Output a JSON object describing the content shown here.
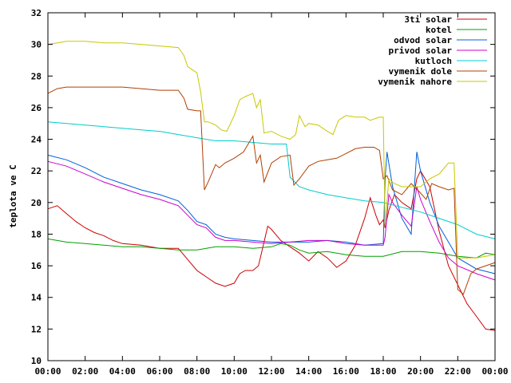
{
  "chart_data": {
    "type": "line",
    "title": "",
    "xlabel": "",
    "ylabel": "teplota ve C",
    "x_tick_labels": [
      "00:00",
      "02:00",
      "04:00",
      "06:00",
      "08:00",
      "10:00",
      "12:00",
      "14:00",
      "16:00",
      "18:00",
      "20:00",
      "22:00",
      "00:00"
    ],
    "y_ticks": [
      10,
      12,
      14,
      16,
      18,
      20,
      22,
      24,
      26,
      28,
      30,
      32
    ],
    "xlim": [
      0,
      24
    ],
    "ylim": [
      10,
      32
    ],
    "grid": false,
    "legend_position": "top-right",
    "series": [
      {
        "name": "3ti solar",
        "color": "#cc0000",
        "points": [
          [
            0,
            19.6
          ],
          [
            0.5,
            19.8
          ],
          [
            1,
            19.3
          ],
          [
            1.5,
            18.8
          ],
          [
            2,
            18.4
          ],
          [
            2.5,
            18.1
          ],
          [
            3,
            17.9
          ],
          [
            3.5,
            17.6
          ],
          [
            4,
            17.4
          ],
          [
            5,
            17.3
          ],
          [
            6,
            17.1
          ],
          [
            7,
            17.1
          ],
          [
            7.5,
            16.4
          ],
          [
            8,
            15.7
          ],
          [
            8.5,
            15.3
          ],
          [
            9,
            14.9
          ],
          [
            9.5,
            14.7
          ],
          [
            10,
            14.9
          ],
          [
            10.3,
            15.5
          ],
          [
            10.6,
            15.7
          ],
          [
            11,
            15.7
          ],
          [
            11.3,
            16.0
          ],
          [
            11.6,
            17.5
          ],
          [
            11.8,
            18.5
          ],
          [
            12,
            18.3
          ],
          [
            12.5,
            17.6
          ],
          [
            13,
            17.2
          ],
          [
            13.5,
            16.8
          ],
          [
            14,
            16.3
          ],
          [
            14.5,
            16.9
          ],
          [
            15,
            16.5
          ],
          [
            15.5,
            15.9
          ],
          [
            16,
            16.3
          ],
          [
            16.5,
            17.3
          ],
          [
            17,
            19.0
          ],
          [
            17.3,
            20.3
          ],
          [
            17.6,
            19.2
          ],
          [
            17.8,
            18.6
          ],
          [
            18,
            18.9
          ],
          [
            18.1,
            18.4
          ],
          [
            18.3,
            19.5
          ],
          [
            18.6,
            20.5
          ],
          [
            19,
            20.0
          ],
          [
            19.5,
            19.6
          ],
          [
            19.8,
            21.5
          ],
          [
            20,
            22.0
          ],
          [
            20.5,
            21.0
          ],
          [
            21,
            18.2
          ],
          [
            21.5,
            16.0
          ],
          [
            22,
            14.8
          ],
          [
            22.5,
            13.6
          ],
          [
            23,
            12.8
          ],
          [
            23.5,
            12.0
          ],
          [
            24,
            11.9
          ]
        ]
      },
      {
        "name": "kotel",
        "color": "#00a000",
        "points": [
          [
            0,
            17.7
          ],
          [
            1,
            17.5
          ],
          [
            2,
            17.4
          ],
          [
            3,
            17.3
          ],
          [
            4,
            17.2
          ],
          [
            5,
            17.2
          ],
          [
            6,
            17.1
          ],
          [
            7,
            17.0
          ],
          [
            8,
            17.0
          ],
          [
            9,
            17.2
          ],
          [
            10,
            17.2
          ],
          [
            11,
            17.1
          ],
          [
            12,
            17.2
          ],
          [
            12.5,
            17.4
          ],
          [
            13,
            17.3
          ],
          [
            13.5,
            17.0
          ],
          [
            14,
            16.8
          ],
          [
            15,
            16.9
          ],
          [
            16,
            16.7
          ],
          [
            17,
            16.6
          ],
          [
            18,
            16.6
          ],
          [
            19,
            16.9
          ],
          [
            20,
            16.9
          ],
          [
            21,
            16.8
          ],
          [
            22,
            16.6
          ],
          [
            23,
            16.5
          ],
          [
            23.5,
            16.8
          ],
          [
            24,
            16.7
          ]
        ]
      },
      {
        "name": "odvod solar",
        "color": "#0060dd",
        "points": [
          [
            0,
            23.0
          ],
          [
            1,
            22.7
          ],
          [
            2,
            22.2
          ],
          [
            3,
            21.6
          ],
          [
            4,
            21.2
          ],
          [
            5,
            20.8
          ],
          [
            6,
            20.5
          ],
          [
            7,
            20.1
          ],
          [
            7.5,
            19.5
          ],
          [
            8,
            18.8
          ],
          [
            8.5,
            18.6
          ],
          [
            9,
            18.0
          ],
          [
            9.5,
            17.8
          ],
          [
            10,
            17.7
          ],
          [
            11,
            17.6
          ],
          [
            12,
            17.5
          ],
          [
            13,
            17.5
          ],
          [
            14,
            17.5
          ],
          [
            15,
            17.6
          ],
          [
            16,
            17.5
          ],
          [
            17,
            17.3
          ],
          [
            18,
            17.4
          ],
          [
            18.1,
            21.5
          ],
          [
            18.2,
            23.2
          ],
          [
            18.5,
            21.0
          ],
          [
            19,
            19.0
          ],
          [
            19.5,
            18.0
          ],
          [
            19.8,
            23.2
          ],
          [
            20,
            22.0
          ],
          [
            20.5,
            20.0
          ],
          [
            21,
            18.5
          ],
          [
            21.5,
            17.5
          ],
          [
            22,
            16.5
          ],
          [
            23,
            15.8
          ],
          [
            24,
            15.5
          ]
        ]
      },
      {
        "name": "privod solar",
        "color": "#cc00cc",
        "points": [
          [
            0,
            22.6
          ],
          [
            1,
            22.3
          ],
          [
            2,
            21.8
          ],
          [
            3,
            21.3
          ],
          [
            4,
            20.9
          ],
          [
            5,
            20.5
          ],
          [
            6,
            20.2
          ],
          [
            7,
            19.8
          ],
          [
            7.5,
            19.2
          ],
          [
            8,
            18.6
          ],
          [
            8.5,
            18.4
          ],
          [
            9,
            17.8
          ],
          [
            9.5,
            17.6
          ],
          [
            10,
            17.6
          ],
          [
            11,
            17.5
          ],
          [
            12,
            17.4
          ],
          [
            13,
            17.5
          ],
          [
            14,
            17.6
          ],
          [
            15,
            17.6
          ],
          [
            16,
            17.4
          ],
          [
            17,
            17.3
          ],
          [
            18,
            17.3
          ],
          [
            18.1,
            17.8
          ],
          [
            18.3,
            20.5
          ],
          [
            18.5,
            20.0
          ],
          [
            19,
            19.2
          ],
          [
            19.5,
            18.5
          ],
          [
            19.8,
            21.0
          ],
          [
            20,
            20.2
          ],
          [
            20.5,
            18.8
          ],
          [
            21,
            17.5
          ],
          [
            21.5,
            16.5
          ],
          [
            22,
            16.0
          ],
          [
            23,
            15.5
          ],
          [
            24,
            15.1
          ]
        ]
      },
      {
        "name": "kutloch",
        "color": "#00cccc",
        "points": [
          [
            0,
            25.1
          ],
          [
            1,
            25.0
          ],
          [
            2,
            24.9
          ],
          [
            3,
            24.8
          ],
          [
            4,
            24.7
          ],
          [
            5,
            24.6
          ],
          [
            6,
            24.5
          ],
          [
            7,
            24.3
          ],
          [
            8,
            24.1
          ],
          [
            9,
            23.9
          ],
          [
            10,
            23.9
          ],
          [
            11,
            23.8
          ],
          [
            12,
            23.7
          ],
          [
            12.8,
            23.7
          ],
          [
            13,
            21.6
          ],
          [
            13.5,
            21.0
          ],
          [
            14,
            20.8
          ],
          [
            15,
            20.5
          ],
          [
            16,
            20.3
          ],
          [
            17,
            20.1
          ],
          [
            18,
            20.0
          ],
          [
            19,
            19.7
          ],
          [
            20,
            19.4
          ],
          [
            21,
            19.0
          ],
          [
            22,
            18.6
          ],
          [
            23,
            18.0
          ],
          [
            24,
            17.7
          ]
        ]
      },
      {
        "name": "vymenik dole",
        "color": "#b04000",
        "points": [
          [
            0,
            26.9
          ],
          [
            0.5,
            27.2
          ],
          [
            1,
            27.3
          ],
          [
            2,
            27.3
          ],
          [
            3,
            27.3
          ],
          [
            4,
            27.3
          ],
          [
            5,
            27.2
          ],
          [
            6,
            27.1
          ],
          [
            7,
            27.1
          ],
          [
            7.3,
            26.6
          ],
          [
            7.5,
            25.9
          ],
          [
            8,
            25.8
          ],
          [
            8.2,
            25.8
          ],
          [
            8.4,
            20.8
          ],
          [
            8.6,
            21.3
          ],
          [
            9,
            22.4
          ],
          [
            9.2,
            22.2
          ],
          [
            9.5,
            22.5
          ],
          [
            10,
            22.8
          ],
          [
            10.5,
            23.2
          ],
          [
            11,
            24.2
          ],
          [
            11.2,
            22.5
          ],
          [
            11.4,
            23.0
          ],
          [
            11.6,
            21.3
          ],
          [
            12,
            22.5
          ],
          [
            12.5,
            22.9
          ],
          [
            13,
            23.0
          ],
          [
            13.2,
            21.1
          ],
          [
            13.5,
            21.5
          ],
          [
            14,
            22.3
          ],
          [
            14.5,
            22.6
          ],
          [
            15,
            22.7
          ],
          [
            15.5,
            22.8
          ],
          [
            16,
            23.1
          ],
          [
            16.5,
            23.4
          ],
          [
            17,
            23.5
          ],
          [
            17.5,
            23.5
          ],
          [
            17.8,
            23.3
          ],
          [
            18,
            21.5
          ],
          [
            18.2,
            21.7
          ],
          [
            18.5,
            20.8
          ],
          [
            19,
            20.5
          ],
          [
            19.5,
            21.2
          ],
          [
            20,
            20.6
          ],
          [
            20.3,
            20.2
          ],
          [
            20.6,
            21.2
          ],
          [
            21,
            21.0
          ],
          [
            21.5,
            20.8
          ],
          [
            21.8,
            20.9
          ],
          [
            22,
            14.5
          ],
          [
            22.3,
            14.2
          ],
          [
            22.7,
            15.5
          ],
          [
            23,
            15.8
          ],
          [
            23.5,
            16.0
          ],
          [
            24,
            16.2
          ]
        ]
      },
      {
        "name": "vymenik nahore",
        "color": "#c8c800",
        "points": [
          [
            0,
            30.0
          ],
          [
            0.5,
            30.1
          ],
          [
            1,
            30.2
          ],
          [
            2,
            30.2
          ],
          [
            3,
            30.1
          ],
          [
            4,
            30.1
          ],
          [
            5,
            30.0
          ],
          [
            6,
            29.9
          ],
          [
            7,
            29.8
          ],
          [
            7.3,
            29.3
          ],
          [
            7.5,
            28.6
          ],
          [
            8,
            28.2
          ],
          [
            8.2,
            27.0
          ],
          [
            8.4,
            25.1
          ],
          [
            8.6,
            25.1
          ],
          [
            9,
            24.9
          ],
          [
            9.3,
            24.6
          ],
          [
            9.6,
            24.5
          ],
          [
            10,
            25.5
          ],
          [
            10.3,
            26.5
          ],
          [
            10.6,
            26.7
          ],
          [
            11,
            26.9
          ],
          [
            11.2,
            26.0
          ],
          [
            11.4,
            26.5
          ],
          [
            11.6,
            24.4
          ],
          [
            12,
            24.5
          ],
          [
            12.5,
            24.2
          ],
          [
            13,
            24.0
          ],
          [
            13.3,
            24.3
          ],
          [
            13.5,
            25.5
          ],
          [
            13.8,
            24.8
          ],
          [
            14,
            25.0
          ],
          [
            14.5,
            24.9
          ],
          [
            15,
            24.5
          ],
          [
            15.3,
            24.3
          ],
          [
            15.6,
            25.2
          ],
          [
            16,
            25.5
          ],
          [
            16.5,
            25.4
          ],
          [
            17,
            25.4
          ],
          [
            17.3,
            25.2
          ],
          [
            17.8,
            25.4
          ],
          [
            18,
            25.4
          ],
          [
            18.1,
            18.5
          ],
          [
            18.3,
            21.5
          ],
          [
            18.6,
            21.2
          ],
          [
            19,
            21.0
          ],
          [
            19.5,
            21.0
          ],
          [
            20,
            21.0
          ],
          [
            20.5,
            21.5
          ],
          [
            21,
            21.8
          ],
          [
            21.5,
            22.5
          ],
          [
            21.8,
            22.5
          ],
          [
            22,
            16.5
          ],
          [
            22.5,
            16.5
          ],
          [
            23,
            16.5
          ],
          [
            23.5,
            16.6
          ],
          [
            24,
            16.7
          ]
        ]
      }
    ]
  }
}
